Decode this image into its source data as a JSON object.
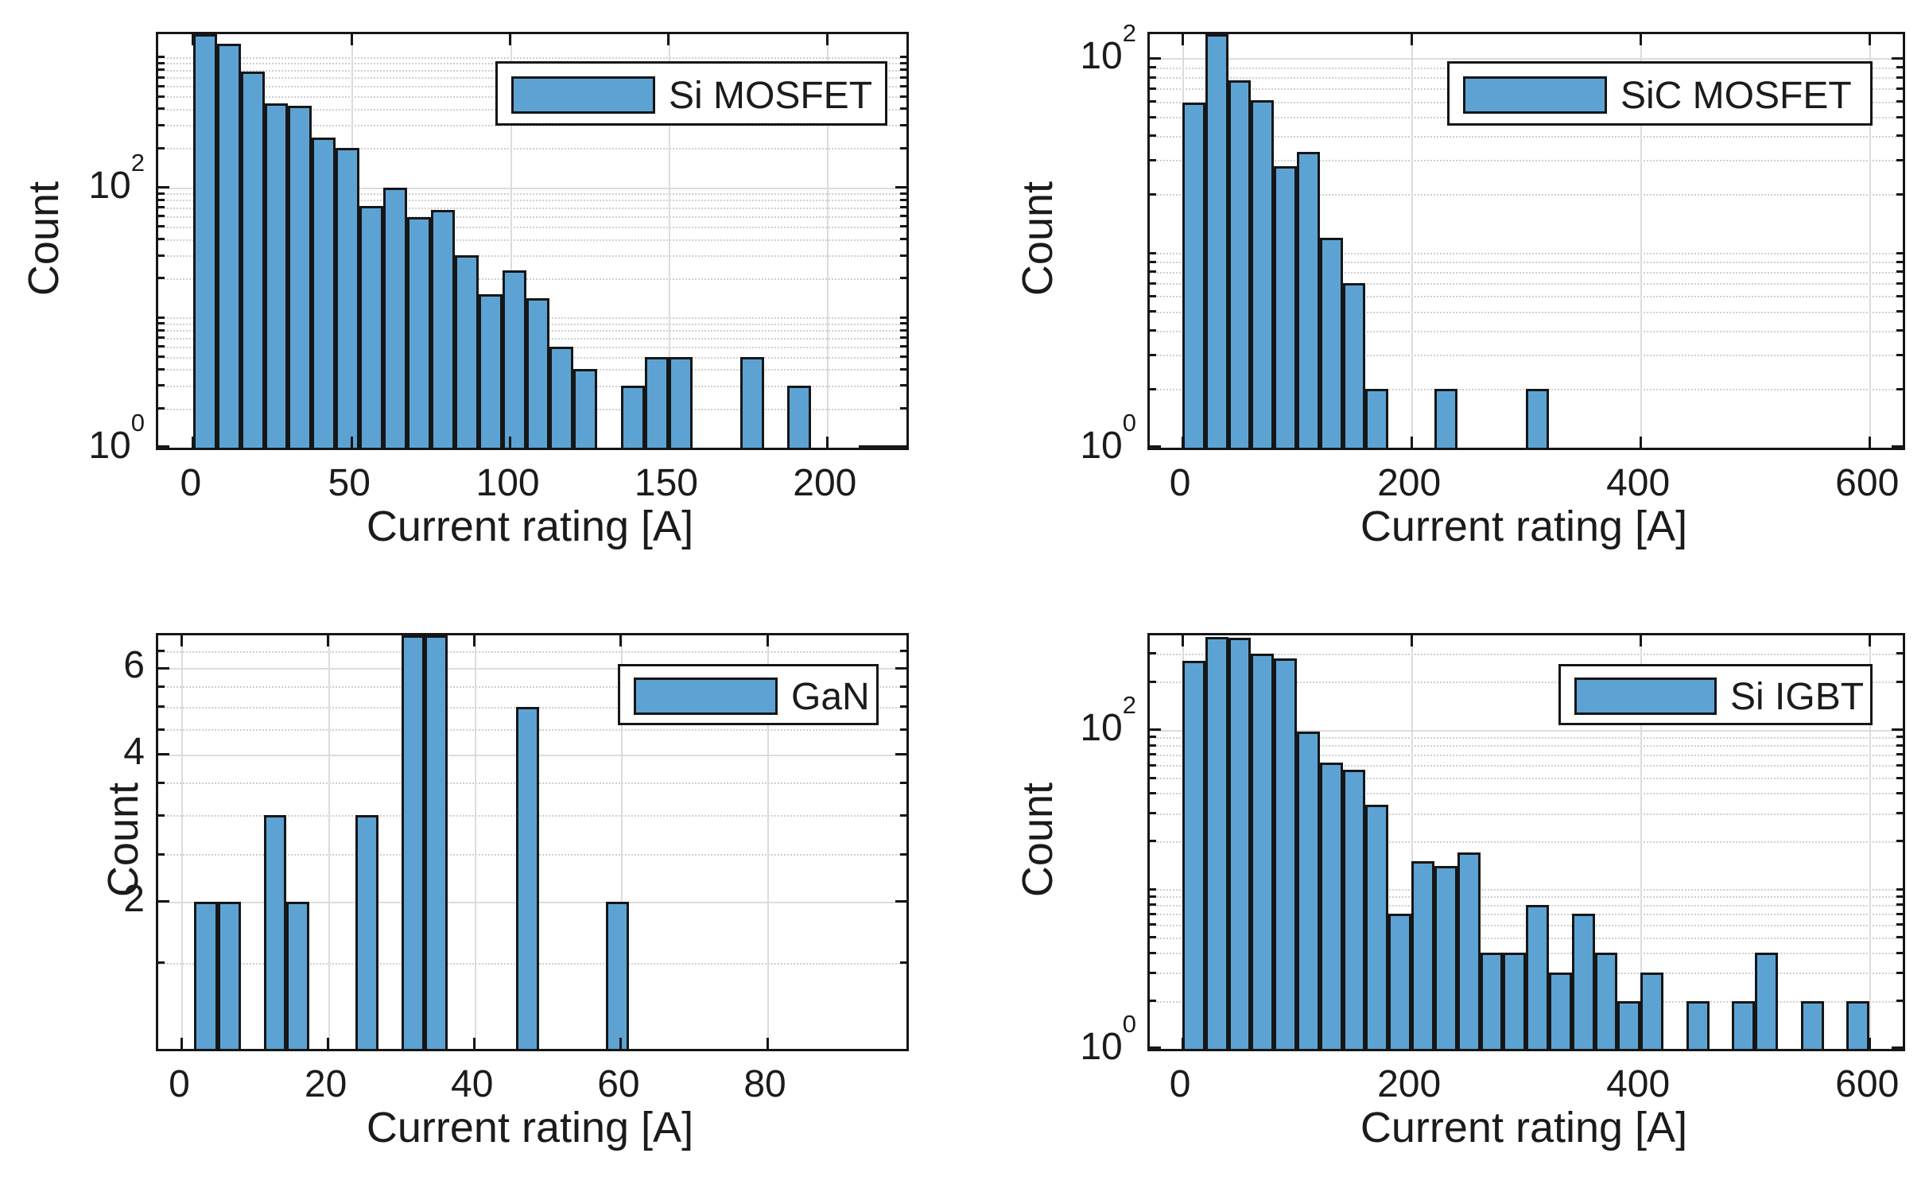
{
  "figure": {
    "xlabel": "Current rating [A]",
    "ylabel": "Count",
    "bar_fill_color": "#5ca3d4",
    "bar_edge_color": "#161616",
    "grid_color": "#dcdcdc",
    "text_color": "#1b1b1b"
  },
  "chart_data": [
    {
      "id": "si-mosfet",
      "type": "bar",
      "subtype": "histogram",
      "legend": "Si MOSFET",
      "xlabel": "Current rating [A]",
      "ylabel": "Count",
      "yscale": "log",
      "xlim": [
        -11,
        225
      ],
      "ylim": [
        1,
        1500
      ],
      "xticks": [
        0,
        50,
        100,
        150,
        200
      ],
      "yticks": [
        {
          "base": "10",
          "exp": "0",
          "value": 1
        },
        {
          "base": "10",
          "exp": "2",
          "value": 100
        }
      ],
      "minor_gridlines_y": [
        2,
        3,
        4,
        5,
        6,
        7,
        8,
        9,
        10,
        20,
        30,
        40,
        50,
        60,
        70,
        80,
        90,
        200,
        300,
        400,
        500,
        600,
        700,
        800,
        900,
        1000
      ],
      "bin_start": 0,
      "bin_width": 7.5,
      "counts": [
        1500,
        1262,
        778,
        443,
        423,
        240,
        200,
        72,
        100,
        59,
        67,
        30,
        15,
        23,
        14,
        6,
        4,
        0,
        3,
        5,
        5,
        0,
        0,
        5,
        0,
        3,
        0,
        0,
        1,
        1
      ]
    },
    {
      "id": "sic-mosfet",
      "type": "bar",
      "subtype": "histogram",
      "legend": "SiC MOSFET",
      "xlabel": "Current rating [A]",
      "ylabel": "Count",
      "yscale": "log",
      "xlim": [
        -28.5,
        629
      ],
      "ylim": [
        1,
        133
      ],
      "xticks": [
        0,
        200,
        400,
        600
      ],
      "yticks": [
        {
          "base": "10",
          "exp": "0",
          "value": 1
        },
        {
          "base": "10",
          "exp": "2",
          "value": 100
        }
      ],
      "minor_gridlines_y": [
        2,
        3,
        4,
        5,
        6,
        7,
        8,
        9,
        10,
        20,
        30,
        40,
        50,
        60,
        70,
        80,
        90
      ],
      "bin_start": 0,
      "bin_width": 20,
      "counts": [
        59,
        133,
        77,
        61,
        28,
        33,
        12,
        7,
        2,
        0,
        0,
        2,
        0,
        0,
        0,
        2
      ]
    },
    {
      "id": "gan",
      "type": "bar",
      "subtype": "histogram",
      "legend": "GaN",
      "xlabel": "Current rating [A]",
      "ylabel": "Count",
      "yscale": "log",
      "xlim": [
        -3.2,
        99
      ],
      "ylim": [
        1,
        7
      ],
      "xticks": [
        0,
        20,
        40,
        60,
        80
      ],
      "yticks": [
        {
          "base": "2",
          "exp": "",
          "value": 2
        },
        {
          "base": "4",
          "exp": "",
          "value": 4
        },
        {
          "base": "6",
          "exp": "",
          "value": 6
        }
      ],
      "minor_gridlines_y": [
        1.5,
        2.5,
        3,
        3.5,
        4.5,
        5,
        5.5,
        6.5
      ],
      "bars": [
        {
          "x0": 1.7,
          "x1": 4.9,
          "count": 2
        },
        {
          "x0": 4.9,
          "x1": 8.1,
          "count": 2
        },
        {
          "x0": 11.2,
          "x1": 14.3,
          "count": 3
        },
        {
          "x0": 14.3,
          "x1": 17.4,
          "count": 2
        },
        {
          "x0": 23.7,
          "x1": 26.9,
          "count": 3
        },
        {
          "x0": 30.0,
          "x1": 33.2,
          "count": 7
        },
        {
          "x0": 33.2,
          "x1": 36.3,
          "count": 7
        },
        {
          "x0": 45.7,
          "x1": 48.8,
          "count": 5
        },
        {
          "x0": 58.0,
          "x1": 61.1,
          "count": 2
        }
      ]
    },
    {
      "id": "si-igbt",
      "type": "bar",
      "subtype": "histogram",
      "legend": "Si IGBT",
      "xlabel": "Current rating [A]",
      "ylabel": "Count",
      "yscale": "log",
      "xlim": [
        -28.5,
        629
      ],
      "ylim": [
        1,
        390
      ],
      "xticks": [
        0,
        200,
        400,
        600
      ],
      "yticks": [
        {
          "base": "10",
          "exp": "0",
          "value": 1
        },
        {
          "base": "10",
          "exp": "2",
          "value": 100
        }
      ],
      "minor_gridlines_y": [
        2,
        3,
        4,
        5,
        6,
        7,
        8,
        9,
        10,
        20,
        30,
        40,
        50,
        60,
        70,
        80,
        90,
        200,
        300
      ],
      "bin_start": 0,
      "bin_width": 20,
      "counts": [
        270,
        382,
        375,
        300,
        280,
        97,
        62,
        56,
        34,
        7,
        15,
        14,
        17,
        4,
        4,
        8,
        3,
        7,
        4,
        2,
        3,
        0,
        2,
        0,
        2,
        4,
        0,
        2,
        0,
        2
      ]
    }
  ]
}
